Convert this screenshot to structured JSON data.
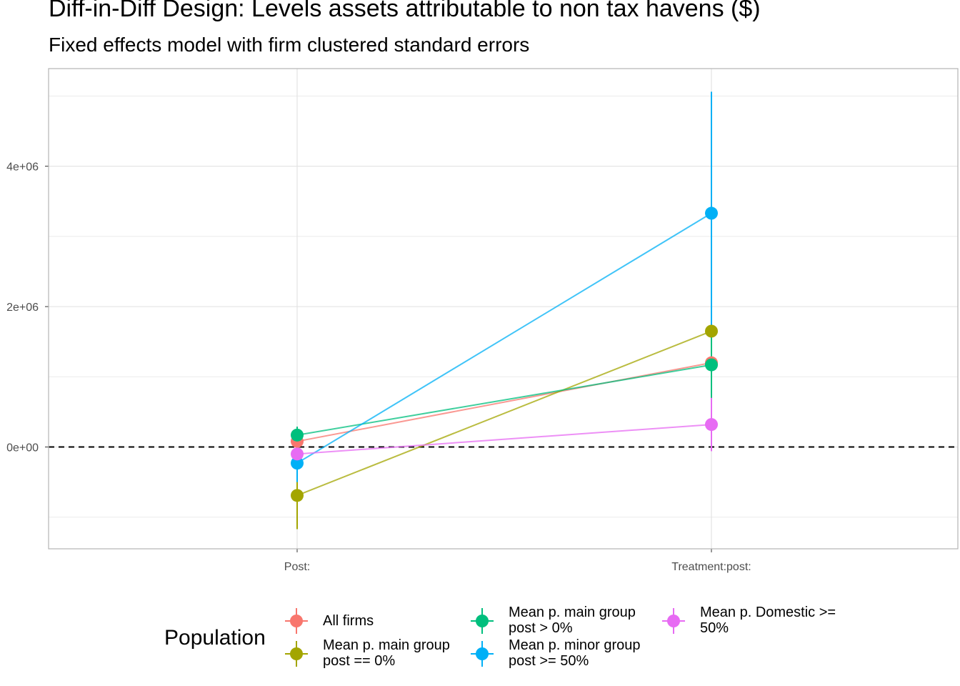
{
  "title": "Diff-in-Diff Design: Levels assets attributable to non tax havens  ($)",
  "subtitle": "Fixed effects model with firm clustered standard errors",
  "chart_data": {
    "type": "line",
    "title": "Diff-in-Diff Design: Levels assets attributable to non tax havens  ($)",
    "subtitle": "Fixed effects model with firm clustered standard errors",
    "xlabel": "",
    "ylabel": "",
    "categories": [
      "Post:",
      "Treatment:post:"
    ],
    "y_ticks": [
      0,
      2000000,
      4000000
    ],
    "y_tick_labels": [
      "0e+00",
      "2e+06",
      "4e+06"
    ],
    "ylim": [
      -1450000,
      5390000
    ],
    "grid": true,
    "reference_line": {
      "y": 0,
      "style": "dashed",
      "color": "#000000"
    },
    "legend": {
      "title": "Population",
      "position": "bottom"
    },
    "series": [
      {
        "name": "All firms",
        "color": "#F8766D",
        "values": [
          80000,
          1200000
        ],
        "lower": [
          -20000,
          700000
        ],
        "upper": [
          180000,
          1700000
        ]
      },
      {
        "name": "Mean p. main group post == 0%",
        "color": "#A3A500",
        "values": [
          -690000,
          1650000
        ],
        "lower": [
          -1170000,
          700000
        ],
        "upper": [
          -210000,
          2600000
        ]
      },
      {
        "name": "Mean p. main group post > 0%",
        "color": "#00BF7D",
        "values": [
          170000,
          1170000
        ],
        "lower": [
          50000,
          700000
        ],
        "upper": [
          290000,
          1640000
        ]
      },
      {
        "name": "Mean p. minor group post >= 50%",
        "color": "#00B0F6",
        "values": [
          -230000,
          3330000
        ],
        "lower": [
          -500000,
          1600000
        ],
        "upper": [
          40000,
          5060000
        ]
      },
      {
        "name": "Mean p. Domestic >= 50%",
        "color": "#E76BF3",
        "values": [
          -100000,
          320000
        ],
        "lower": [
          -230000,
          -60000
        ],
        "upper": [
          30000,
          700000
        ]
      }
    ]
  }
}
